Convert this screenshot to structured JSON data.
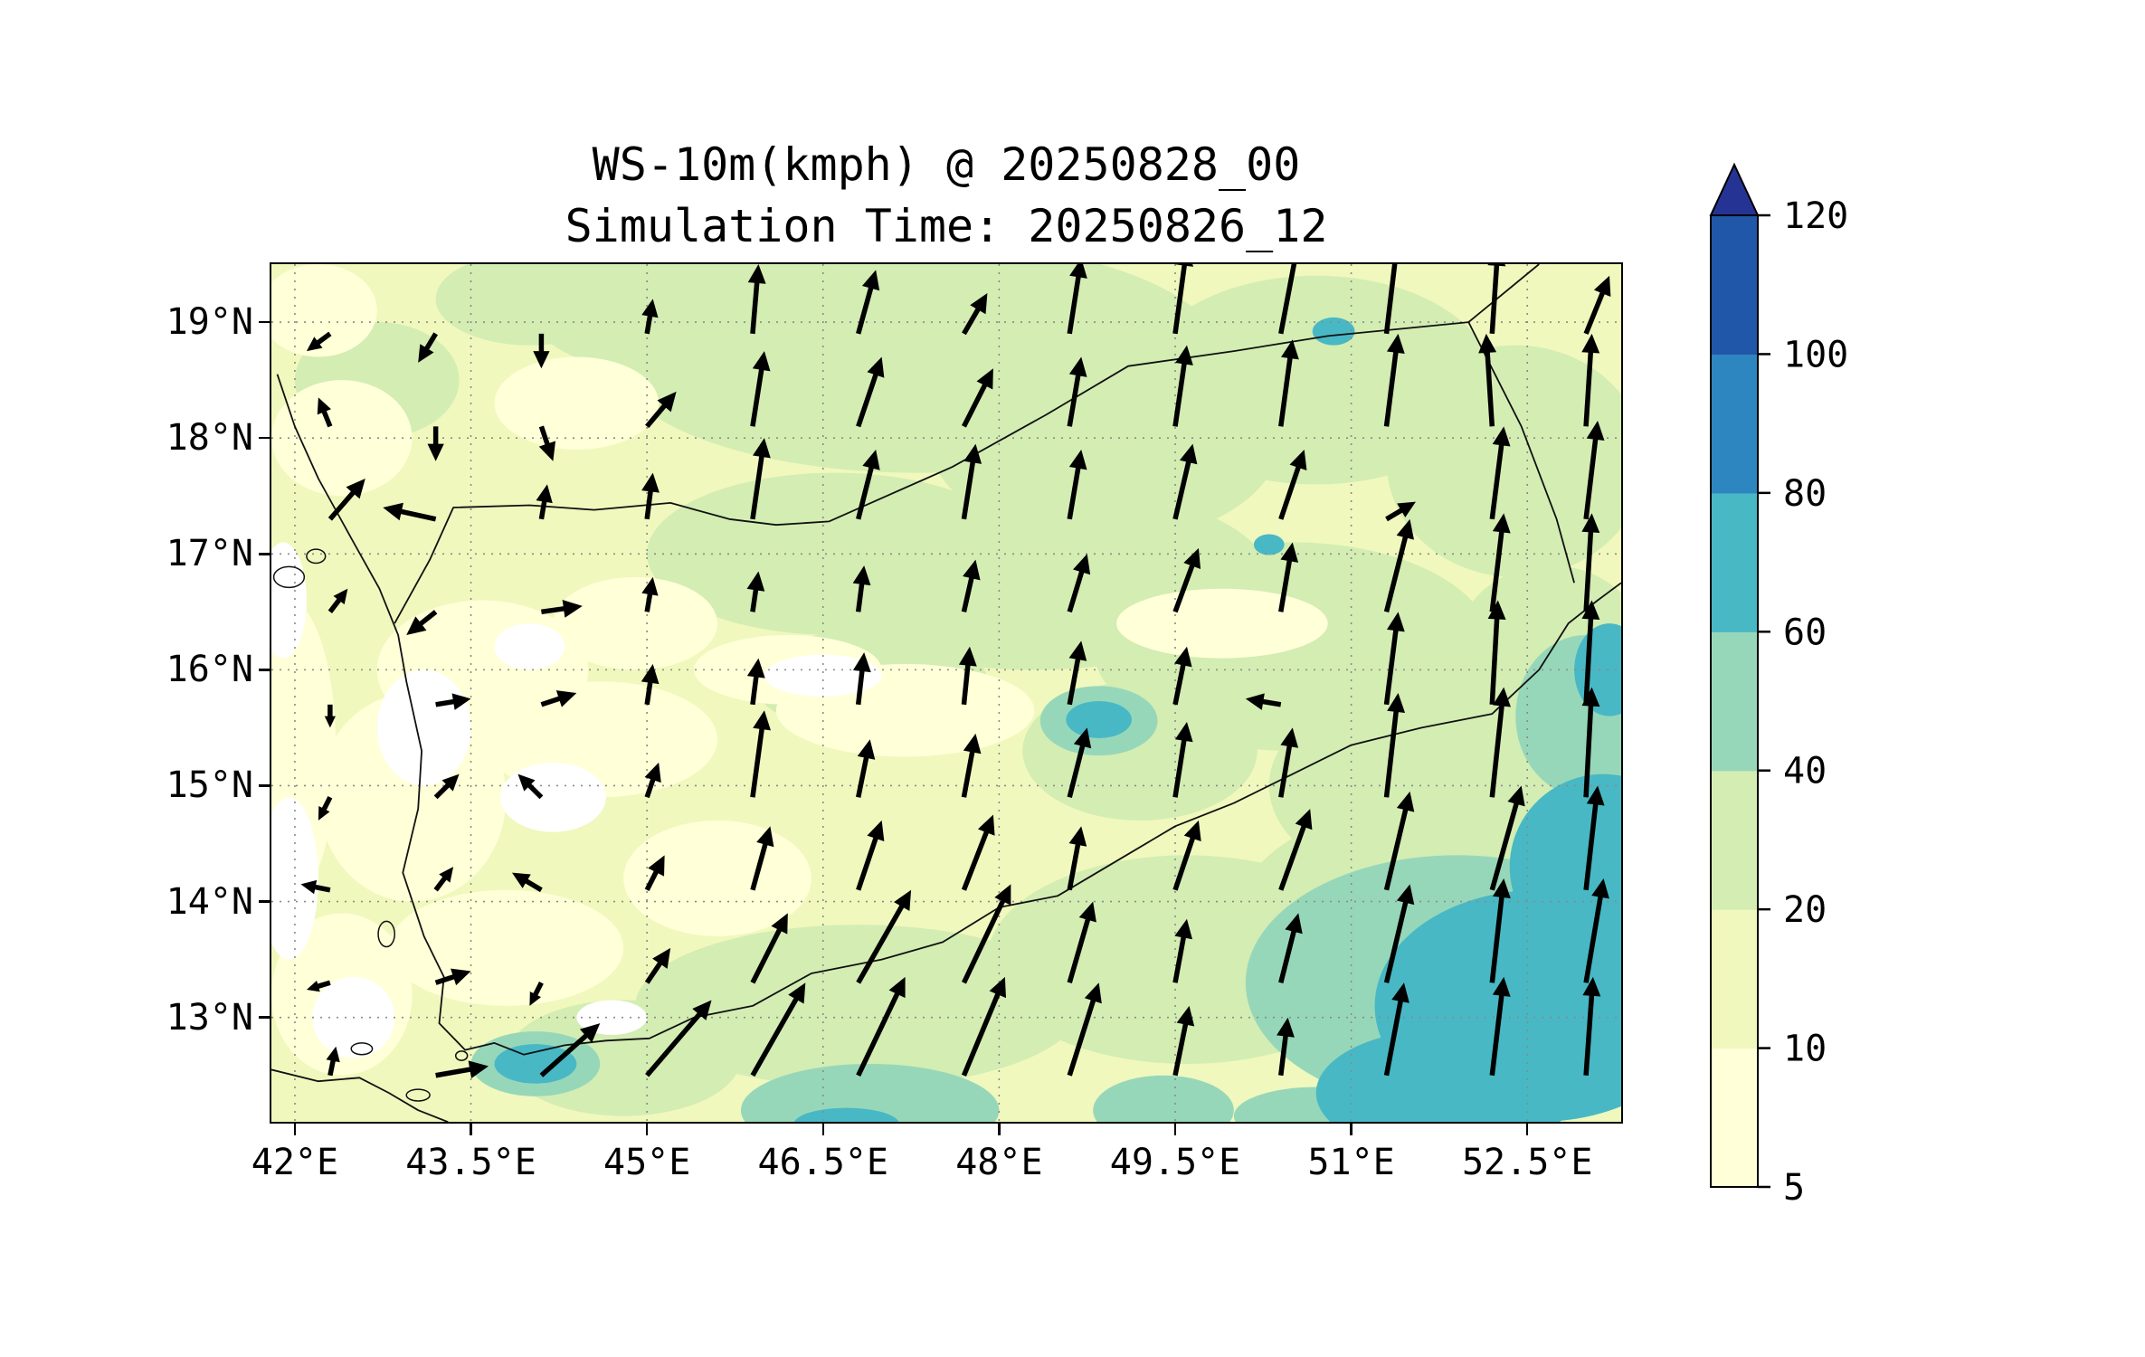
{
  "chart_data": {
    "type": "heatmap",
    "overlay": "quiver",
    "title": "WS-10m(kmph) @ 20250828_00",
    "subtitle": "Simulation Time: 20250826_12",
    "units": "kmph",
    "lon_range": [
      41.8,
      53.3
    ],
    "lat_range": [
      12.1,
      19.5
    ],
    "x_ticks": {
      "values": [
        42,
        43.5,
        45,
        46.5,
        48,
        49.5,
        51,
        52.5
      ],
      "labels": [
        "42°E",
        "43.5°E",
        "45°E",
        "46.5°E",
        "48°E",
        "49.5°E",
        "51°E",
        "52.5°E"
      ]
    },
    "y_ticks": {
      "values": [
        13,
        14,
        15,
        16,
        17,
        18,
        19
      ],
      "labels": [
        "13°N",
        "14°N",
        "15°N",
        "16°N",
        "17°N",
        "18°N",
        "19°N"
      ]
    },
    "colorbar": {
      "levels": [
        5,
        10,
        20,
        40,
        60,
        80,
        100,
        120
      ],
      "labels": [
        "5",
        "10",
        "20",
        "40",
        "60",
        "80",
        "100",
        "120"
      ],
      "band_colors": [
        "#ffffd8",
        "#f0f8bd",
        "#d3edb3",
        "#97d7b9",
        "#48b8c5",
        "#2e86c0",
        "#2157a8"
      ],
      "extend_color": "#253494",
      "under_color": "#ffffff"
    },
    "speed_patches": [
      [
        47.3,
        18.7,
        2.6,
        1.0,
        2
      ],
      [
        45.5,
        19.1,
        1.5,
        0.6,
        2
      ],
      [
        48.9,
        18.0,
        1.5,
        0.9,
        2
      ],
      [
        50.7,
        18.5,
        1.5,
        0.9,
        2
      ],
      [
        52.4,
        17.8,
        1.1,
        1.0,
        2
      ],
      [
        46.6,
        17.0,
        1.6,
        0.7,
        2
      ],
      [
        48.3,
        16.8,
        2.0,
        0.8,
        2
      ],
      [
        50.5,
        16.2,
        1.7,
        0.9,
        2
      ],
      [
        51.7,
        15.0,
        1.4,
        0.9,
        2
      ],
      [
        52.7,
        16.2,
        0.8,
        0.7,
        2
      ],
      [
        46.9,
        15.9,
        1.0,
        0.45,
        2
      ],
      [
        49.2,
        15.3,
        1.0,
        0.6,
        2
      ],
      [
        46.8,
        13.1,
        1.9,
        0.7,
        2
      ],
      [
        44.8,
        12.65,
        1.0,
        0.5,
        2
      ],
      [
        49.6,
        13.5,
        1.7,
        0.9,
        2
      ],
      [
        51.5,
        13.8,
        1.5,
        1.0,
        2
      ],
      [
        42.7,
        18.5,
        0.7,
        0.5,
        2
      ],
      [
        44.0,
        19.2,
        0.8,
        0.4,
        2
      ],
      [
        43.6,
        16.0,
        0.9,
        0.6,
        0
      ],
      [
        43.0,
        14.9,
        0.8,
        0.9,
        0
      ],
      [
        44.6,
        15.4,
        1.0,
        0.5,
        0
      ],
      [
        43.8,
        13.6,
        1.0,
        0.5,
        0
      ],
      [
        42.4,
        13.2,
        0.6,
        0.7,
        0
      ],
      [
        44.9,
        16.4,
        0.7,
        0.4,
        0
      ],
      [
        47.2,
        15.65,
        1.1,
        0.4,
        0
      ],
      [
        46.2,
        16.0,
        0.8,
        0.3,
        0
      ],
      [
        49.9,
        16.4,
        0.9,
        0.3,
        0
      ],
      [
        42.4,
        18.0,
        0.6,
        0.5,
        0
      ],
      [
        44.4,
        18.3,
        0.7,
        0.4,
        0
      ],
      [
        42.2,
        19.1,
        0.5,
        0.4,
        0
      ],
      [
        45.6,
        14.2,
        0.8,
        0.5,
        0
      ],
      [
        41.95,
        15.3,
        0.4,
        1.3,
        0
      ],
      [
        43.1,
        15.5,
        0.4,
        0.5,
        -1
      ],
      [
        44.2,
        14.9,
        0.45,
        0.3,
        -1
      ],
      [
        42.5,
        13.0,
        0.35,
        0.35,
        -1
      ],
      [
        46.5,
        15.95,
        0.5,
        0.18,
        -1
      ],
      [
        44.0,
        16.2,
        0.3,
        0.2,
        -1
      ],
      [
        41.95,
        14.2,
        0.25,
        0.7,
        -1
      ],
      [
        41.9,
        16.6,
        0.2,
        0.5,
        -1
      ],
      [
        44.7,
        13.0,
        0.3,
        0.15,
        -1
      ],
      [
        46.9,
        12.2,
        1.1,
        0.4,
        3
      ],
      [
        51.9,
        13.3,
        1.8,
        1.1,
        3
      ],
      [
        53.0,
        15.6,
        0.6,
        0.7,
        3
      ],
      [
        48.85,
        15.56,
        0.5,
        0.3,
        3
      ],
      [
        44.05,
        12.6,
        0.55,
        0.28,
        3
      ],
      [
        49.4,
        12.2,
        0.6,
        0.3,
        3
      ],
      [
        50.7,
        12.15,
        0.7,
        0.25,
        3
      ],
      [
        52.6,
        13.1,
        1.4,
        1.0,
        4
      ],
      [
        53.15,
        14.3,
        0.8,
        0.8,
        4
      ],
      [
        51.8,
        12.35,
        1.1,
        0.55,
        4
      ],
      [
        44.05,
        12.6,
        0.35,
        0.17,
        4
      ],
      [
        48.85,
        15.57,
        0.28,
        0.16,
        4
      ],
      [
        50.85,
        18.92,
        0.18,
        0.12,
        4
      ],
      [
        50.3,
        17.08,
        0.13,
        0.09,
        4
      ],
      [
        46.7,
        12.08,
        0.45,
        0.14,
        4
      ],
      [
        53.2,
        16.0,
        0.3,
        0.4,
        4
      ]
    ],
    "coastlines": [
      [
        [
          41.85,
          18.55
        ],
        [
          42.0,
          18.1
        ],
        [
          42.2,
          17.65
        ],
        [
          42.5,
          17.1
        ],
        [
          42.72,
          16.7
        ],
        [
          42.88,
          16.3
        ],
        [
          42.95,
          15.9
        ],
        [
          43.08,
          15.3
        ],
        [
          43.05,
          14.8
        ],
        [
          42.92,
          14.25
        ],
        [
          43.1,
          13.7
        ],
        [
          43.27,
          13.35
        ],
        [
          43.23,
          12.95
        ],
        [
          43.45,
          12.72
        ],
        [
          43.7,
          12.78
        ],
        [
          43.95,
          12.68
        ],
        [
          44.3,
          12.76
        ],
        [
          44.65,
          12.8
        ],
        [
          45.02,
          12.82
        ],
        [
          45.4,
          13.0
        ],
        [
          45.9,
          13.1
        ],
        [
          46.4,
          13.38
        ],
        [
          47.0,
          13.5
        ],
        [
          47.52,
          13.65
        ],
        [
          48.0,
          13.95
        ],
        [
          48.5,
          14.05
        ],
        [
          49.0,
          14.35
        ],
        [
          49.5,
          14.65
        ],
        [
          50.0,
          14.85
        ],
        [
          50.5,
          15.1
        ],
        [
          51.0,
          15.35
        ],
        [
          51.6,
          15.5
        ],
        [
          52.2,
          15.62
        ],
        [
          52.6,
          16.0
        ],
        [
          52.85,
          16.4
        ],
        [
          53.1,
          16.6
        ],
        [
          53.3,
          16.75
        ]
      ],
      [
        [
          41.8,
          12.55
        ],
        [
          42.2,
          12.45
        ],
        [
          42.55,
          12.48
        ],
        [
          42.8,
          12.35
        ],
        [
          43.05,
          12.2
        ],
        [
          43.3,
          12.1
        ],
        [
          43.45,
          11.95
        ]
      ]
    ],
    "borders": [
      [
        [
          42.85,
          16.4
        ],
        [
          43.15,
          16.95
        ],
        [
          43.35,
          17.4
        ],
        [
          44.0,
          17.42
        ],
        [
          44.55,
          17.38
        ],
        [
          45.2,
          17.44
        ],
        [
          45.7,
          17.3
        ],
        [
          46.1,
          17.25
        ],
        [
          46.55,
          17.28
        ],
        [
          47.6,
          17.75
        ],
        [
          48.4,
          18.2
        ],
        [
          49.1,
          18.62
        ],
        [
          50.0,
          18.75
        ],
        [
          50.8,
          18.88
        ],
        [
          52.0,
          19.0
        ]
      ],
      [
        [
          52.0,
          19.0
        ],
        [
          52.6,
          19.5
        ]
      ],
      [
        [
          52.0,
          19.0
        ],
        [
          52.45,
          18.1
        ],
        [
          52.75,
          17.3
        ],
        [
          52.9,
          16.75
        ]
      ]
    ],
    "islands": [
      [
        41.95,
        16.8,
        0.13,
        0.09
      ],
      [
        42.18,
        16.98,
        0.08,
        0.06
      ],
      [
        42.78,
        13.72,
        0.07,
        0.11
      ],
      [
        42.57,
        12.73,
        0.09,
        0.05
      ],
      [
        43.42,
        12.67,
        0.05,
        0.04
      ],
      [
        43.05,
        12.33,
        0.1,
        0.05
      ]
    ],
    "wind_arrows": [
      [
        42.3,
        12.5,
        0.05,
        0.25
      ],
      [
        43.2,
        12.5,
        0.45,
        0.08
      ],
      [
        44.1,
        12.5,
        0.5,
        0.45
      ],
      [
        45.0,
        12.5,
        0.55,
        0.65
      ],
      [
        45.9,
        12.5,
        0.45,
        0.8
      ],
      [
        46.8,
        12.5,
        0.4,
        0.85
      ],
      [
        47.7,
        12.5,
        0.35,
        0.85
      ],
      [
        48.6,
        12.5,
        0.25,
        0.8
      ],
      [
        49.5,
        12.5,
        0.12,
        0.6
      ],
      [
        50.4,
        12.5,
        0.06,
        0.5
      ],
      [
        51.3,
        12.5,
        0.15,
        0.8
      ],
      [
        52.2,
        12.5,
        0.1,
        0.85
      ],
      [
        53.0,
        12.5,
        0.06,
        0.85
      ],
      [
        42.3,
        13.3,
        -0.2,
        -0.06
      ],
      [
        43.2,
        13.3,
        0.3,
        0.1
      ],
      [
        44.1,
        13.3,
        -0.1,
        -0.2
      ],
      [
        45.0,
        13.3,
        0.2,
        0.3
      ],
      [
        45.9,
        13.3,
        0.3,
        0.6
      ],
      [
        46.8,
        13.3,
        0.45,
        0.8
      ],
      [
        47.7,
        13.3,
        0.4,
        0.85
      ],
      [
        48.6,
        13.3,
        0.2,
        0.7
      ],
      [
        49.5,
        13.3,
        0.1,
        0.55
      ],
      [
        50.4,
        13.3,
        0.15,
        0.6
      ],
      [
        51.3,
        13.3,
        0.2,
        0.85
      ],
      [
        52.2,
        13.3,
        0.1,
        0.9
      ],
      [
        53.0,
        13.3,
        0.15,
        0.9
      ],
      [
        42.3,
        14.1,
        -0.25,
        0.05
      ],
      [
        43.2,
        14.1,
        0.15,
        0.2
      ],
      [
        44.1,
        14.1,
        -0.25,
        0.15
      ],
      [
        45.0,
        14.1,
        0.15,
        0.3
      ],
      [
        45.9,
        14.1,
        0.15,
        0.55
      ],
      [
        46.8,
        14.1,
        0.2,
        0.6
      ],
      [
        47.7,
        14.1,
        0.25,
        0.65
      ],
      [
        48.6,
        14.1,
        0.1,
        0.55
      ],
      [
        49.5,
        14.1,
        0.2,
        0.6
      ],
      [
        50.4,
        14.1,
        0.25,
        0.7
      ],
      [
        51.3,
        14.1,
        0.2,
        0.85
      ],
      [
        52.2,
        14.1,
        0.25,
        0.9
      ],
      [
        53.0,
        14.1,
        0.1,
        0.9
      ],
      [
        42.3,
        14.9,
        -0.1,
        -0.2
      ],
      [
        43.2,
        14.9,
        0.2,
        0.2
      ],
      [
        44.1,
        14.9,
        -0.2,
        0.2
      ],
      [
        45.0,
        14.9,
        0.1,
        0.3
      ],
      [
        45.9,
        14.9,
        0.1,
        0.75
      ],
      [
        46.8,
        14.9,
        0.1,
        0.5
      ],
      [
        47.7,
        14.9,
        0.1,
        0.55
      ],
      [
        48.6,
        14.9,
        0.15,
        0.6
      ],
      [
        49.5,
        14.9,
        0.1,
        0.65
      ],
      [
        50.4,
        14.9,
        0.1,
        0.6
      ],
      [
        51.3,
        14.9,
        0.1,
        0.9
      ],
      [
        52.2,
        14.9,
        0.1,
        0.95
      ],
      [
        53.0,
        14.9,
        0.05,
        0.95
      ],
      [
        42.3,
        15.7,
        0.0,
        -0.2
      ],
      [
        43.2,
        15.7,
        0.3,
        0.05
      ],
      [
        44.1,
        15.7,
        0.3,
        0.1
      ],
      [
        45.0,
        15.7,
        0.05,
        0.35
      ],
      [
        45.9,
        15.7,
        0.05,
        0.4
      ],
      [
        46.8,
        15.7,
        0.05,
        0.45
      ],
      [
        47.7,
        15.7,
        0.05,
        0.5
      ],
      [
        48.6,
        15.7,
        0.1,
        0.55
      ],
      [
        49.5,
        15.7,
        0.1,
        0.5
      ],
      [
        50.4,
        15.7,
        -0.3,
        0.05
      ],
      [
        51.3,
        15.7,
        0.1,
        0.8
      ],
      [
        52.2,
        15.7,
        0.05,
        0.9
      ],
      [
        53.0,
        15.7,
        0.05,
        0.9
      ],
      [
        42.3,
        16.5,
        0.15,
        0.2
      ],
      [
        43.2,
        16.5,
        -0.25,
        -0.2
      ],
      [
        44.1,
        16.5,
        0.35,
        0.05
      ],
      [
        45.0,
        16.5,
        0.05,
        0.3
      ],
      [
        45.9,
        16.5,
        0.05,
        0.35
      ],
      [
        46.8,
        16.5,
        0.05,
        0.4
      ],
      [
        47.7,
        16.5,
        0.1,
        0.45
      ],
      [
        48.6,
        16.5,
        0.15,
        0.5
      ],
      [
        49.5,
        16.5,
        0.2,
        0.55
      ],
      [
        50.4,
        16.5,
        0.1,
        0.6
      ],
      [
        51.3,
        16.5,
        0.2,
        0.8
      ],
      [
        52.2,
        16.5,
        0.1,
        0.85
      ],
      [
        53.0,
        16.5,
        0.05,
        0.85
      ],
      [
        42.3,
        17.3,
        0.3,
        0.35
      ],
      [
        43.2,
        17.3,
        -0.45,
        0.1
      ],
      [
        44.1,
        17.3,
        0.05,
        0.3
      ],
      [
        45.0,
        17.3,
        0.05,
        0.4
      ],
      [
        45.9,
        17.3,
        0.1,
        0.7
      ],
      [
        46.8,
        17.3,
        0.15,
        0.6
      ],
      [
        47.7,
        17.3,
        0.1,
        0.65
      ],
      [
        48.6,
        17.3,
        0.1,
        0.6
      ],
      [
        49.5,
        17.3,
        0.15,
        0.65
      ],
      [
        50.4,
        17.3,
        0.2,
        0.6
      ],
      [
        51.3,
        17.3,
        0.25,
        0.15
      ],
      [
        52.2,
        17.3,
        0.1,
        0.8
      ],
      [
        53.0,
        17.3,
        0.1,
        0.85
      ],
      [
        42.3,
        18.1,
        -0.1,
        0.25
      ],
      [
        43.2,
        18.1,
        0.0,
        -0.3
      ],
      [
        44.1,
        18.1,
        0.1,
        -0.3
      ],
      [
        45.0,
        18.1,
        0.25,
        0.3
      ],
      [
        45.9,
        18.1,
        0.1,
        0.65
      ],
      [
        46.8,
        18.1,
        0.2,
        0.6
      ],
      [
        47.7,
        18.1,
        0.25,
        0.5
      ],
      [
        48.6,
        18.1,
        0.1,
        0.6
      ],
      [
        49.5,
        18.1,
        0.1,
        0.7
      ],
      [
        50.4,
        18.1,
        0.1,
        0.75
      ],
      [
        51.3,
        18.1,
        0.1,
        0.8
      ],
      [
        52.2,
        18.1,
        -0.05,
        0.8
      ],
      [
        53.0,
        18.1,
        0.05,
        0.8
      ],
      [
        42.3,
        18.9,
        -0.2,
        -0.15
      ],
      [
        43.2,
        18.9,
        -0.15,
        -0.25
      ],
      [
        44.1,
        18.9,
        0.0,
        -0.3
      ],
      [
        45.0,
        18.9,
        0.05,
        0.3
      ],
      [
        45.9,
        18.9,
        0.05,
        0.6
      ],
      [
        46.8,
        18.9,
        0.15,
        0.55
      ],
      [
        47.7,
        18.9,
        0.2,
        0.35
      ],
      [
        48.6,
        18.9,
        0.1,
        0.65
      ],
      [
        49.5,
        18.9,
        0.1,
        0.75
      ],
      [
        50.4,
        18.9,
        0.15,
        0.8
      ],
      [
        51.3,
        18.9,
        0.1,
        0.85
      ],
      [
        52.2,
        18.9,
        0.05,
        0.75
      ],
      [
        53.0,
        18.9,
        0.2,
        0.5
      ]
    ]
  }
}
